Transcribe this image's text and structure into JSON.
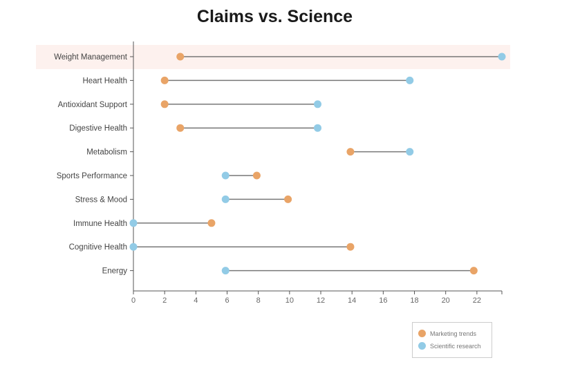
{
  "chart_data": {
    "type": "dumbbell",
    "title": "Claims vs. Science",
    "categories": [
      "Weight Management",
      "Heart Health",
      "Antioxidant Support",
      "Digestive Health",
      "Metabolism",
      "Sports Performance",
      "Stress & Mood",
      "Immune Health",
      "Cognitive Health",
      "Energy"
    ],
    "series": [
      {
        "name": "Marketing trends",
        "color": "#e9a467",
        "values": [
          3,
          2,
          2,
          3,
          13.9,
          7.9,
          9.9,
          5,
          13.9,
          21.8
        ]
      },
      {
        "name": "Scientific research",
        "color": "#92cbe6",
        "values": [
          23.6,
          17.7,
          11.8,
          11.8,
          17.7,
          5.9,
          5.9,
          0,
          0,
          5.9
        ]
      }
    ],
    "xticks": [
      0,
      2,
      4,
      6,
      8,
      10,
      12,
      14,
      16,
      18,
      20,
      22
    ],
    "xlim": [
      0,
      23.6
    ],
    "highlighted_category": "Weight Management",
    "xlabel": "",
    "ylabel": ""
  }
}
